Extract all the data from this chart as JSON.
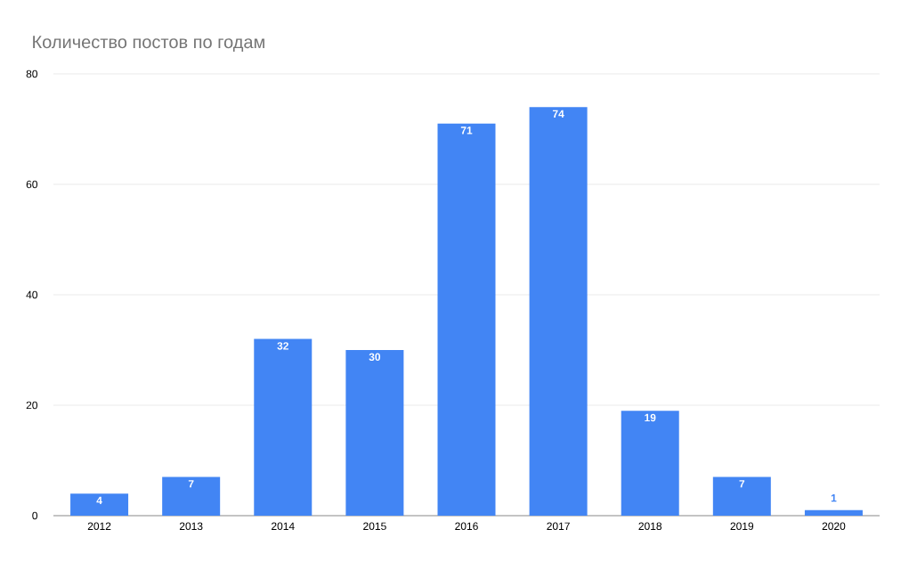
{
  "chart_data": {
    "type": "bar",
    "title": "Количество постов по годам",
    "categories": [
      "2012",
      "2013",
      "2014",
      "2015",
      "2016",
      "2017",
      "2018",
      "2019",
      "2020"
    ],
    "values": [
      4,
      7,
      32,
      30,
      71,
      74,
      19,
      7,
      1
    ],
    "color": "#4285f4",
    "ylim": [
      0,
      80
    ],
    "yticks": [
      0,
      20,
      40,
      60,
      80
    ],
    "grid": "y",
    "data_labels": true
  }
}
